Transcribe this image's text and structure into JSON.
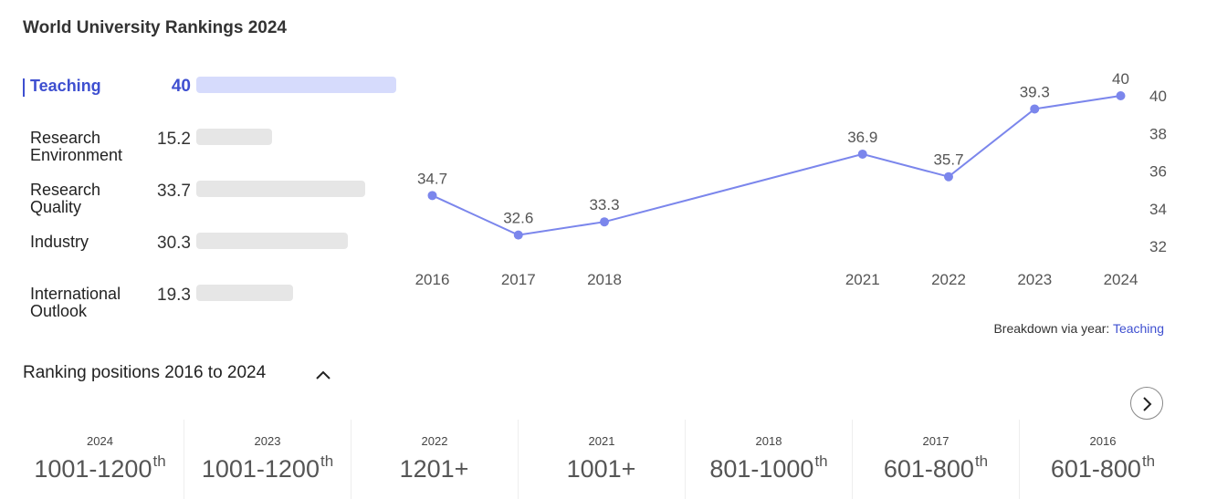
{
  "title": "World University Rankings 2024",
  "metrics": [
    {
      "label": "Teaching",
      "score": "40",
      "value": 40,
      "active": true
    },
    {
      "label": "Research Environment",
      "score": "15.2",
      "value": 15.2,
      "active": false
    },
    {
      "label": "Research Quality",
      "score": "33.7",
      "value": 33.7,
      "active": false
    },
    {
      "label": "Industry",
      "score": "30.3",
      "value": 30.3,
      "active": false
    },
    {
      "label": "International Outlook",
      "score": "19.3",
      "value": 19.3,
      "active": false
    }
  ],
  "colors": {
    "accent": "#3e4fd0",
    "line": "#7b86ec",
    "active_track": "#d6dbfc",
    "track": "#e6e6e6"
  },
  "chart_data": {
    "type": "line",
    "x": [
      "2016",
      "2017",
      "2018",
      "2021",
      "2022",
      "2023",
      "2024"
    ],
    "series": [
      {
        "values": [
          34.7,
          32.6,
          33.3,
          36.9,
          35.7,
          39.3,
          40
        ]
      }
    ],
    "data_labels": [
      "34.7",
      "32.6",
      "33.3",
      "36.9",
      "35.7",
      "39.3",
      "40"
    ],
    "yticks": [
      "32",
      "34",
      "36",
      "38",
      "40"
    ],
    "ylim": [
      31,
      41
    ],
    "y_axis_position": "right",
    "grid": false,
    "title": "",
    "xlabel": "",
    "ylabel": ""
  },
  "breakdown": {
    "prefix": "Breakdown via year:",
    "link": "Teaching"
  },
  "ranking": {
    "title": "Ranking positions 2016 to 2024",
    "positions": [
      {
        "year": "2024",
        "rank": "1001-1200",
        "suffix": "th"
      },
      {
        "year": "2023",
        "rank": "1001-1200",
        "suffix": "th"
      },
      {
        "year": "2022",
        "rank": "1201+",
        "suffix": ""
      },
      {
        "year": "2021",
        "rank": "1001+",
        "suffix": ""
      },
      {
        "year": "2018",
        "rank": "801-1000",
        "suffix": "th"
      },
      {
        "year": "2017",
        "rank": "601-800",
        "suffix": "th"
      },
      {
        "year": "2016",
        "rank": "601-800",
        "suffix": "th"
      }
    ]
  },
  "icons": {
    "collapse": "chevron-up-icon",
    "next": "chevron-right-icon"
  }
}
